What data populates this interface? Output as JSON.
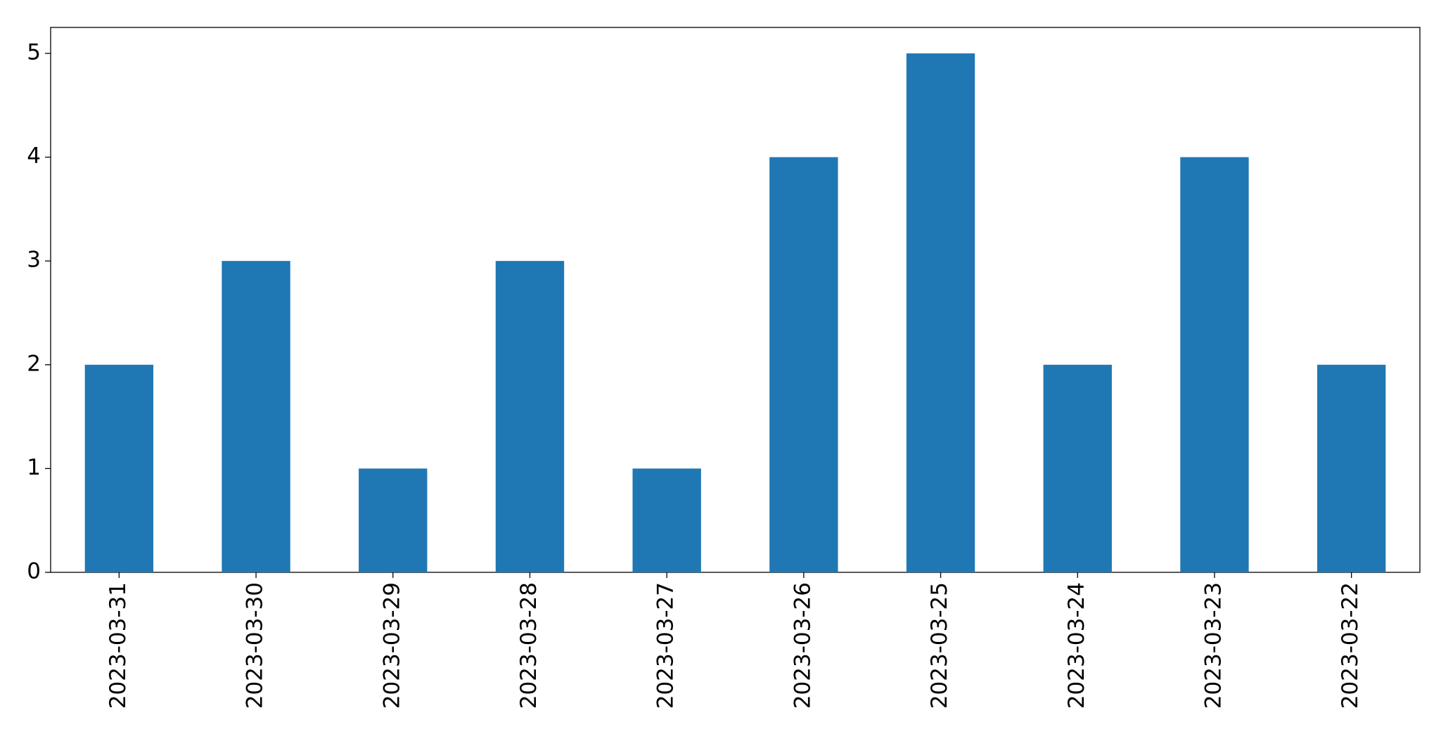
{
  "chart_data": {
    "type": "bar",
    "categories": [
      "2023-03-31",
      "2023-03-30",
      "2023-03-29",
      "2023-03-28",
      "2023-03-27",
      "2023-03-26",
      "2023-03-25",
      "2023-03-24",
      "2023-03-23",
      "2023-03-22"
    ],
    "values": [
      2,
      3,
      1,
      3,
      1,
      4,
      5,
      2,
      4,
      2
    ],
    "color": "#1f77b4",
    "ylim": [
      0,
      5.25
    ],
    "yticks": [
      0,
      1,
      2,
      3,
      4,
      5
    ],
    "grid": false
  }
}
